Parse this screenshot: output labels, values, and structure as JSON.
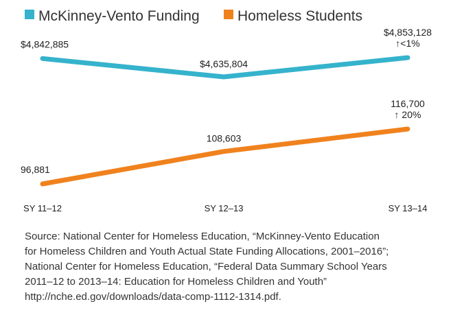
{
  "chart_data": {
    "type": "line",
    "categories": [
      "SY 11–12",
      "SY 12–13",
      "SY 13–14"
    ],
    "legend_position": "top-left",
    "grid": false,
    "series": [
      {
        "name": "McKinney-Vento Funding",
        "color": "#35b3cc",
        "values": [
          4842885,
          4635804,
          4853128
        ],
        "labels": [
          "$4,842,885",
          "$4,635,804",
          "$4,853,128"
        ],
        "change": "↑<1%"
      },
      {
        "name": "Homeless Students",
        "color": "#f0821e",
        "values": [
          96881,
          108603,
          116700
        ],
        "labels": [
          "96,881",
          "108,603",
          "116,700"
        ],
        "change": "↑ 20%"
      }
    ]
  },
  "source_lines": [
    "Source: National Center for Homeless Education, “McKinney-Vento Education",
    "for Homeless Children and Youth Actual State Funding Allocations, 2001–2016”;",
    "National Center for Homeless Education, “Federal Data Summary School Years",
    "2011–12 to 2013–14: Education for Homeless Children and Youth”",
    "http://nche.ed.gov/downloads/data-comp-1112-1314.pdf."
  ]
}
